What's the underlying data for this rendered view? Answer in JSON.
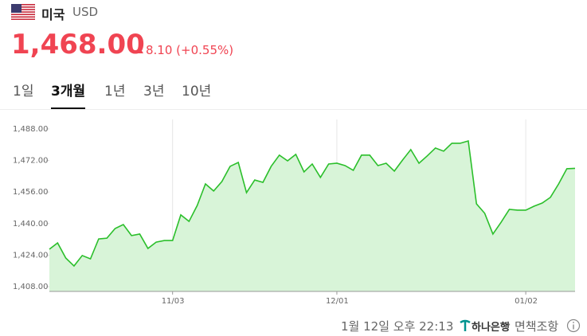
{
  "header": {
    "country": "미국",
    "currency": "USD",
    "price": "1,468.00",
    "change": "8.10 (+0.55%)"
  },
  "tabs": [
    "1일",
    "3개월",
    "1년",
    "3년",
    "10년"
  ],
  "active_tab": 1,
  "chart_data": {
    "type": "area",
    "categories": [
      null,
      null,
      null,
      null,
      null,
      null,
      null,
      null,
      null,
      null,
      null,
      null,
      null,
      null,
      null,
      "11/03",
      null,
      null,
      null,
      null,
      null,
      null,
      null,
      null,
      null,
      null,
      null,
      null,
      null,
      null,
      null,
      null,
      null,
      null,
      null,
      "12/01",
      null,
      null,
      null,
      null,
      null,
      null,
      null,
      null,
      null,
      null,
      null,
      null,
      null,
      null,
      null,
      null,
      null,
      null,
      null,
      null,
      null,
      null,
      "01/02",
      null,
      null,
      null,
      null,
      null,
      null
    ],
    "values": [
      1427.0,
      1430.2,
      1422.5,
      1418.5,
      1423.8,
      1422.1,
      1432.2,
      1432.6,
      1437.5,
      1439.5,
      1433.9,
      1434.7,
      1427.4,
      1430.6,
      1431.4,
      1431.4,
      1444.4,
      1441.1,
      1449.2,
      1460.1,
      1456.5,
      1461.3,
      1469.0,
      1471.0,
      1455.7,
      1462.1,
      1460.9,
      1469.0,
      1474.7,
      1471.8,
      1475.1,
      1466.2,
      1470.2,
      1463.4,
      1470.2,
      1470.6,
      1469.4,
      1467.0,
      1474.7,
      1474.7,
      1469.4,
      1470.6,
      1466.6,
      1472.2,
      1477.5,
      1470.6,
      1474.3,
      1478.3,
      1476.7,
      1480.7,
      1480.7,
      1481.9,
      1450.0,
      1445.2,
      1434.7,
      1440.7,
      1447.2,
      1446.8,
      1446.8,
      1448.8,
      1450.4,
      1453.3,
      1460.1,
      1467.8,
      1468.0
    ],
    "color": "#2bbf2b",
    "fill_color": "#d8f4d8",
    "ylim": [
      1405.6,
      1492.8
    ],
    "yticks": [
      {
        "value": 1408,
        "label": "1,408.00"
      },
      {
        "value": 1424,
        "label": "1,424.00"
      },
      {
        "value": 1440,
        "label": "1,440.00"
      },
      {
        "value": 1456,
        "label": "1,456.00"
      },
      {
        "value": 1472,
        "label": "1,472.00"
      },
      {
        "value": 1488,
        "label": "1,488.00"
      }
    ]
  },
  "footer": {
    "timestamp": "1월 12일 오후 22:13",
    "bank": "하나은행",
    "separator": "·",
    "disclaimer": "면책조항"
  }
}
